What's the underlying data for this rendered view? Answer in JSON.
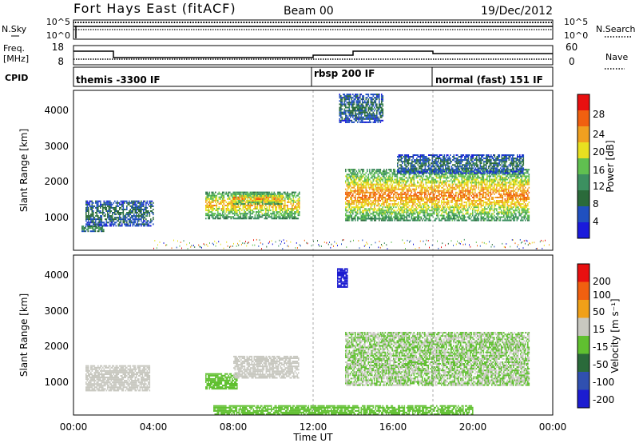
{
  "header": {
    "title": "Fort Hays East (fitACF)",
    "beam": "Beam 00",
    "date": "19/Dec/2012"
  },
  "noise_panel": {
    "left_label": "N.Sky",
    "right_label": "N.Search",
    "left_ticks": [
      "10^5",
      "10^0"
    ],
    "right_ticks": [
      "10^5",
      "10^0"
    ]
  },
  "freq_panel": {
    "left_label_1": "Freq.",
    "left_label_2": "[MHz]",
    "right_label": "Nave",
    "left_ticks": [
      "18",
      "8"
    ],
    "right_ticks": [
      "60",
      "0"
    ]
  },
  "cpid_panel": {
    "label": "CPID",
    "modes": [
      "themis -3300 IF",
      "rbsp 200 IF",
      "normal (fast) 151 IF"
    ]
  },
  "power_panel": {
    "ylabel": "Slant Range [km]",
    "yticks": [
      "4000",
      "3000",
      "2000",
      "1000"
    ],
    "colorbar_label": "Power [dB]",
    "colorbar_ticks": [
      "28",
      "24",
      "20",
      "16",
      "12",
      "8",
      "4"
    ]
  },
  "velocity_panel": {
    "ylabel": "Slant Range [km]",
    "yticks": [
      "4000",
      "3000",
      "2000",
      "1000"
    ],
    "colorbar_label": "Velocity [m s⁻¹]",
    "colorbar_ticks": [
      "200",
      "100",
      "50",
      "15",
      "-15",
      "-50",
      "-100",
      "-200"
    ]
  },
  "xaxis": {
    "label": "Time UT",
    "ticks": [
      "00:00",
      "04:00",
      "08:00",
      "12:00",
      "16:00",
      "20:00",
      "00:00"
    ]
  },
  "colors": {
    "power_scale": [
      "#1a1adc",
      "#2050c0",
      "#2a6a3a",
      "#3c9060",
      "#60c050",
      "#e8e020",
      "#f0a020",
      "#f06010",
      "#e81010"
    ],
    "velocity_scale": [
      "#1c1cd0",
      "#3050b0",
      "#2a6a3a",
      "#60c030",
      "#c8c8c0",
      "#f0a018",
      "#f06010",
      "#e81010"
    ]
  },
  "chart_data": [
    {
      "type": "line",
      "title": "Fort Hays East (fitACF)",
      "xlabel": "",
      "ylabel": "N.Sky",
      "x": [
        0,
        0.4,
        24
      ],
      "series": [
        {
          "values": [
            1,
            100000,
            100000
          ]
        }
      ],
      "ylim": [
        1,
        100000
      ],
      "yscale": "log"
    },
    {
      "type": "line",
      "xlabel": "",
      "ylabel": "Freq. [MHz]",
      "x_hours": [
        0,
        2,
        2,
        11,
        11,
        13.5,
        13.5,
        17.9,
        17.9,
        24
      ],
      "series": [
        {
          "values": [
            14.2,
            14.2,
            10.3,
            10.3,
            10.3,
            10.3,
            14.2,
            14.2,
            12.4,
            12.4
          ]
        }
      ],
      "ylim": [
        8,
        18
      ],
      "y2label": "Nave",
      "y2lim": [
        0,
        60
      ]
    },
    {
      "type": "table",
      "ylabel": "CPID",
      "segments": [
        {
          "start_hour": 0,
          "end_hour": 11,
          "mode": "themis -3300 IF"
        },
        {
          "start_hour": 11,
          "end_hour": 17.9,
          "mode": "rbsp 200 IF"
        },
        {
          "start_hour": 17.9,
          "end_hour": 24,
          "mode": "normal (fast) 151 IF"
        }
      ]
    },
    {
      "type": "heatmap",
      "ylabel": "Slant Range [km]",
      "colorbar_label": "Power [dB]",
      "xlim_hours": [
        0,
        24
      ],
      "ylim": [
        200,
        4600
      ],
      "clim": [
        0,
        32
      ],
      "regions": [
        {
          "t0": 0.6,
          "t1": 4.0,
          "r0": 850,
          "r1": 1550,
          "level": 8
        },
        {
          "t0": 0.4,
          "t1": 1.5,
          "r0": 700,
          "r1": 850,
          "level": 12
        },
        {
          "t0": 6.6,
          "t1": 11.3,
          "r0": 1050,
          "r1": 1800,
          "level": 20
        },
        {
          "t0": 8.0,
          "t1": 10.5,
          "r0": 1450,
          "r1": 1750,
          "level": 22
        },
        {
          "t0": 13.6,
          "t1": 22.8,
          "r0": 1000,
          "r1": 2400,
          "level": 22
        },
        {
          "t0": 16.2,
          "t1": 22.5,
          "r0": 2300,
          "r1": 2800,
          "level": 8
        },
        {
          "t0": 13.3,
          "t1": 15.5,
          "r0": 3700,
          "r1": 4500,
          "level": 8
        }
      ]
    },
    {
      "type": "heatmap",
      "ylabel": "Slant Range [km]",
      "colorbar_label": "Velocity [m s⁻¹]",
      "xlim_hours": [
        0,
        24
      ],
      "ylim": [
        200,
        4600
      ],
      "clim": [
        -250,
        250
      ],
      "regions": [
        {
          "t0": 0.6,
          "t1": 3.8,
          "r0": 850,
          "r1": 1550,
          "level": 40
        },
        {
          "t0": 6.6,
          "t1": 8.2,
          "r0": 900,
          "r1": 1350,
          "level": -50
        },
        {
          "t0": 8.0,
          "t1": 11.3,
          "r0": 1200,
          "r1": 1800,
          "level": 40
        },
        {
          "t0": 13.6,
          "t1": 22.8,
          "r0": 1000,
          "r1": 2450,
          "level": 0
        },
        {
          "t0": 13.2,
          "t1": 13.7,
          "r0": 3700,
          "r1": 4200,
          "level": -220
        },
        {
          "t0": 7.0,
          "t1": 20.0,
          "r0": 200,
          "r1": 450,
          "level": -50
        }
      ]
    }
  ]
}
